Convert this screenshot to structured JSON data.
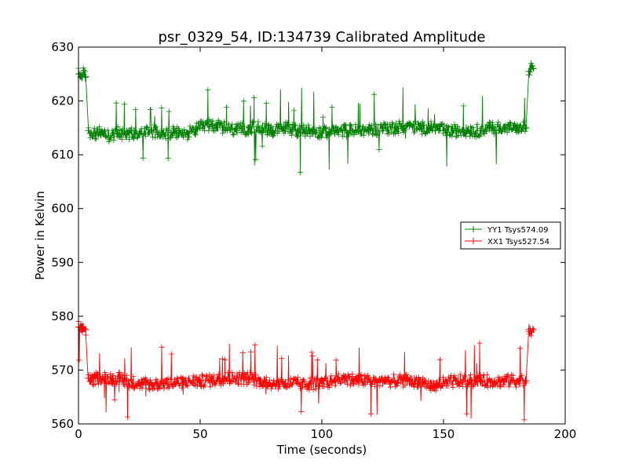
{
  "chart_data": {
    "type": "line",
    "title": "psr_0329_54, ID:134739 Calibrated Amplitude",
    "xlabel": "Time (seconds)",
    "ylabel": "Power in Kelvin",
    "xlim": [
      0,
      200
    ],
    "ylim": [
      560,
      630
    ],
    "xticks": [
      0,
      50,
      100,
      150,
      200
    ],
    "yticks": [
      560,
      570,
      580,
      590,
      600,
      610,
      620,
      630
    ],
    "grid": false,
    "legend_position": "center-right",
    "marker": "plus",
    "series": [
      {
        "name": "YY1 Tsys574.09",
        "color": "#008000",
        "x": [
          0,
          1,
          2,
          3,
          4,
          5,
          7,
          10,
          13,
          16,
          20,
          25,
          30,
          35,
          40,
          45,
          50,
          55,
          60,
          65,
          70,
          75,
          80,
          85,
          90,
          95,
          100,
          105,
          110,
          115,
          120,
          125,
          130,
          135,
          140,
          145,
          150,
          155,
          160,
          165,
          170,
          175,
          180,
          184,
          185,
          186,
          187
        ],
        "y": [
          625,
          624.5,
          625,
          624.5,
          614.5,
          614,
          614,
          614,
          613.5,
          614,
          614,
          614,
          614.5,
          614,
          614,
          614,
          615,
          615.5,
          615,
          614.5,
          615,
          615,
          614.5,
          615,
          614.5,
          614.5,
          614,
          614.5,
          614.5,
          614.5,
          614.5,
          615,
          615,
          615.5,
          615,
          615,
          614.5,
          614.5,
          614.5,
          614.5,
          615,
          615,
          615,
          615,
          625.5,
          626,
          626
        ]
      },
      {
        "name": "XX1 Tsys527.54",
        "color": "#ff0000",
        "x": [
          0,
          1,
          2,
          3,
          4,
          5,
          7,
          10,
          13,
          16,
          20,
          25,
          30,
          35,
          40,
          45,
          50,
          55,
          60,
          65,
          70,
          75,
          80,
          85,
          90,
          95,
          100,
          105,
          110,
          115,
          120,
          125,
          130,
          135,
          140,
          145,
          150,
          155,
          160,
          165,
          170,
          175,
          180,
          184,
          185,
          186,
          187
        ],
        "y": [
          578,
          577.5,
          578,
          577.5,
          568.5,
          568,
          568.5,
          568.5,
          568.5,
          568.5,
          568,
          567.5,
          567.5,
          567.5,
          567.5,
          568,
          568,
          568,
          568.5,
          568.5,
          568.5,
          568,
          567.5,
          567.5,
          567.5,
          567.5,
          567.5,
          568,
          568.5,
          568,
          568,
          568,
          568,
          568,
          568,
          567,
          567.5,
          568,
          568,
          568,
          568,
          568,
          568,
          568,
          577.5,
          577,
          577.5
        ]
      }
    ]
  }
}
